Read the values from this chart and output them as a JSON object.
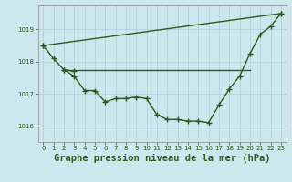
{
  "bg_color": "#cce8ee",
  "grid_color": "#aacdd6",
  "line_color": "#2d5a1b",
  "marker": "+",
  "markersize": 4,
  "linewidth": 1.0,
  "title": "Graphe pression niveau de la mer (hPa)",
  "title_fontsize": 7.5,
  "ylim": [
    1015.5,
    1019.75
  ],
  "xlim": [
    -0.5,
    23.5
  ],
  "yticks": [
    1016,
    1017,
    1018,
    1019
  ],
  "xticks": [
    0,
    1,
    2,
    3,
    4,
    5,
    6,
    7,
    8,
    9,
    10,
    11,
    12,
    13,
    14,
    15,
    16,
    17,
    18,
    19,
    20,
    21,
    22,
    23
  ],
  "line1_x": [
    0,
    1,
    2,
    3
  ],
  "line1_y": [
    1018.5,
    1018.1,
    1017.75,
    1017.7
  ],
  "line2_x": [
    2,
    3,
    4,
    5,
    6,
    7,
    8,
    9,
    10,
    11,
    12,
    13,
    14,
    15,
    16,
    17,
    18,
    19,
    20,
    21,
    22,
    23
  ],
  "line2_y": [
    1017.75,
    1017.55,
    1017.1,
    1017.1,
    1016.75,
    1016.85,
    1016.85,
    1016.9,
    1016.85,
    1016.35,
    1016.2,
    1016.2,
    1016.15,
    1016.15,
    1016.1,
    1016.65,
    1017.15,
    1017.55,
    1018.25,
    1018.85,
    1019.1,
    1019.5
  ],
  "line3_x": [
    0,
    23
  ],
  "line3_y": [
    1018.5,
    1019.5
  ],
  "line4_x": [
    2,
    20
  ],
  "line4_y": [
    1017.75,
    1017.75
  ]
}
